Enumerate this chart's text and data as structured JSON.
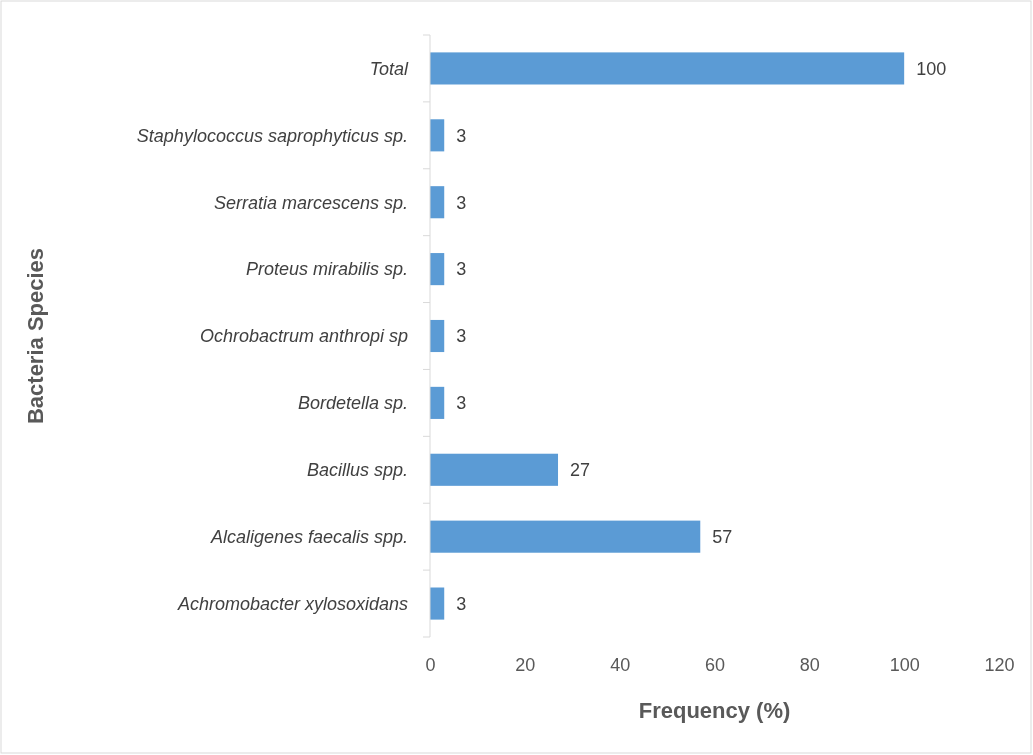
{
  "chart_data": {
    "type": "bar",
    "orientation": "horizontal",
    "xlabel": "Frequency (%)",
    "ylabel": "Bacteria Species",
    "categories": [
      "Total",
      "Staphylococcus saprophyticus sp.",
      "Serratia marcescens sp.",
      "Proteus mirabilis sp.",
      "Ochrobactrum anthropi sp",
      "Bordetella sp.",
      "Bacillus spp.",
      "Alcaligenes faecalis spp.",
      "Achromobacter xylosoxidans"
    ],
    "values": [
      100,
      3,
      3,
      3,
      3,
      3,
      27,
      57,
      3
    ],
    "color": "#5b9bd5",
    "xlim": [
      0,
      120
    ],
    "xticks": [
      0,
      20,
      40,
      60,
      80,
      100,
      120
    ],
    "grid": false,
    "data_labels": true
  }
}
